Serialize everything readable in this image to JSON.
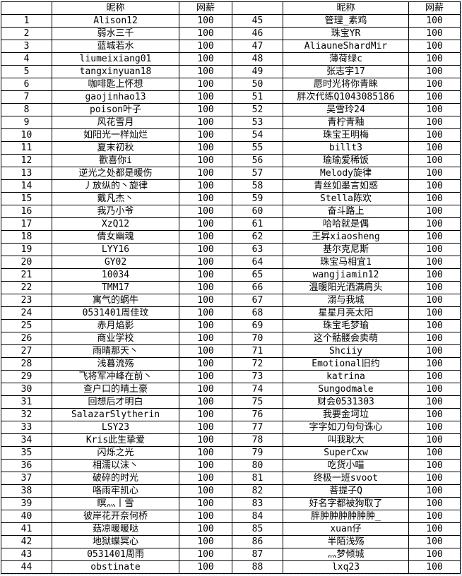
{
  "headers": {
    "index": "",
    "name": "昵称",
    "pay": "网薪"
  },
  "rows": [
    {
      "left": {
        "index": "1",
        "name": "Alison12",
        "pay": "100"
      },
      "right": {
        "index": "45",
        "name": "管理_素鸡",
        "pay": "100"
      }
    },
    {
      "left": {
        "index": "2",
        "name": "弱水三千",
        "pay": "100"
      },
      "right": {
        "index": "46",
        "name": "珠宝YR",
        "pay": "100"
      }
    },
    {
      "left": {
        "index": "3",
        "name": "蓝城若水",
        "pay": "100"
      },
      "right": {
        "index": "47",
        "name": "AliauneShardMir",
        "pay": "100"
      }
    },
    {
      "left": {
        "index": "4",
        "name": "liumeixiang01",
        "pay": "100"
      },
      "right": {
        "index": "48",
        "name": "薄荷绿c",
        "pay": "100"
      }
    },
    {
      "left": {
        "index": "5",
        "name": "tangxinyuan18",
        "pay": "100"
      },
      "right": {
        "index": "49",
        "name": "张志宇17",
        "pay": "100"
      }
    },
    {
      "left": {
        "index": "6",
        "name": "咖啡匙上怀想",
        "pay": "100"
      },
      "right": {
        "index": "50",
        "name": "愿时光将你青睐",
        "pay": "100"
      }
    },
    {
      "left": {
        "index": "7",
        "name": "gaojinhao13",
        "pay": "100"
      },
      "right": {
        "index": "51",
        "name": "胖次代练Q1043085186",
        "pay": "100"
      }
    },
    {
      "left": {
        "index": "8",
        "name": "poison叶子",
        "pay": "100"
      },
      "right": {
        "index": "52",
        "name": "吴雪玲24",
        "pay": "100"
      }
    },
    {
      "left": {
        "index": "9",
        "name": "风花雪月",
        "pay": "100"
      },
      "right": {
        "index": "53",
        "name": "青柠青釉",
        "pay": "100"
      }
    },
    {
      "left": {
        "index": "10",
        "name": "如阳光一样灿烂",
        "pay": "100"
      },
      "right": {
        "index": "54",
        "name": "珠宝王明梅",
        "pay": "100"
      }
    },
    {
      "left": {
        "index": "11",
        "name": "夏末初秋",
        "pay": "100"
      },
      "right": {
        "index": "55",
        "name": "billt3",
        "pay": "100"
      }
    },
    {
      "left": {
        "index": "12",
        "name": "歡喜你i",
        "pay": "100"
      },
      "right": {
        "index": "56",
        "name": "瑜瑜爱稀饭",
        "pay": "100"
      }
    },
    {
      "left": {
        "index": "13",
        "name": "逆光之处都是暖伤",
        "pay": "100"
      },
      "right": {
        "index": "57",
        "name": "Melody旋律",
        "pay": "100"
      }
    },
    {
      "left": {
        "index": "14",
        "name": "丿放纵的丶旋律",
        "pay": "100"
      },
      "right": {
        "index": "58",
        "name": "青丝如墨言如惑",
        "pay": "100"
      }
    },
    {
      "left": {
        "index": "15",
        "name": "戴凡杰丶",
        "pay": "100"
      },
      "right": {
        "index": "59",
        "name": "Stella陈欢",
        "pay": "100"
      }
    },
    {
      "left": {
        "index": "16",
        "name": "我乃小爷",
        "pay": "100"
      },
      "right": {
        "index": "60",
        "name": "奋斗路上",
        "pay": "100"
      }
    },
    {
      "left": {
        "index": "17",
        "name": "XzQ12",
        "pay": "100"
      },
      "right": {
        "index": "61",
        "name": "哈哈就是偶",
        "pay": "100"
      }
    },
    {
      "left": {
        "index": "18",
        "name": "倩女幽魂",
        "pay": "100"
      },
      "right": {
        "index": "62",
        "name": "王昇xiaosheng",
        "pay": "100"
      }
    },
    {
      "left": {
        "index": "19",
        "name": "LYY16",
        "pay": "100"
      },
      "right": {
        "index": "63",
        "name": "基尔克尼斯",
        "pay": "100"
      }
    },
    {
      "left": {
        "index": "20",
        "name": "GY02",
        "pay": "100"
      },
      "right": {
        "index": "64",
        "name": "珠宝马相宜1",
        "pay": "100"
      }
    },
    {
      "left": {
        "index": "21",
        "name": "10034",
        "pay": "100"
      },
      "right": {
        "index": "65",
        "name": "wangjiamin12",
        "pay": "100"
      }
    },
    {
      "left": {
        "index": "22",
        "name": "TMM17",
        "pay": "100"
      },
      "right": {
        "index": "66",
        "name": "温暖阳光洒满肩头",
        "pay": "100"
      }
    },
    {
      "left": {
        "index": "23",
        "name": "寓气的蜗牛",
        "pay": "100"
      },
      "right": {
        "index": "67",
        "name": "溺与我城",
        "pay": "100"
      }
    },
    {
      "left": {
        "index": "24",
        "name": "0531401周佳玟",
        "pay": "100"
      },
      "right": {
        "index": "68",
        "name": "星星月亮太阳",
        "pay": "100"
      }
    },
    {
      "left": {
        "index": "25",
        "name": "赤月焰影",
        "pay": "100"
      },
      "right": {
        "index": "69",
        "name": "珠宝毛梦瑜",
        "pay": "100"
      }
    },
    {
      "left": {
        "index": "26",
        "name": "商业学校",
        "pay": "100"
      },
      "right": {
        "index": "70",
        "name": "这个骷髅会卖萌",
        "pay": "100"
      }
    },
    {
      "left": {
        "index": "27",
        "name": "雨晴那天丶",
        "pay": "100"
      },
      "right": {
        "index": "71",
        "name": "Shciiy",
        "pay": "100"
      }
    },
    {
      "left": {
        "index": "28",
        "name": "浅暮流殇",
        "pay": "100"
      },
      "right": {
        "index": "72",
        "name": "Emotional旧约",
        "pay": "100"
      }
    },
    {
      "left": {
        "index": "29",
        "name": "飞将军冲峰在前丶",
        "pay": "100"
      },
      "right": {
        "index": "73",
        "name": "katrina",
        "pay": "100"
      }
    },
    {
      "left": {
        "index": "30",
        "name": "查户口的晴土豪",
        "pay": "100"
      },
      "right": {
        "index": "74",
        "name": "Sungodmale",
        "pay": "100"
      }
    },
    {
      "left": {
        "index": "31",
        "name": "回想后才明白",
        "pay": "100"
      },
      "right": {
        "index": "75",
        "name": "财会0531303",
        "pay": "100"
      }
    },
    {
      "left": {
        "index": "32",
        "name": "SalazarSlytherin",
        "pay": "100"
      },
      "right": {
        "index": "76",
        "name": "我要金坷垃",
        "pay": "100"
      }
    },
    {
      "left": {
        "index": "33",
        "name": "LSY23",
        "pay": "100"
      },
      "right": {
        "index": "77",
        "name": "字字如刀句句诛心",
        "pay": "100"
      }
    },
    {
      "left": {
        "index": "34",
        "name": "Kris此生挚爱",
        "pay": "100"
      },
      "right": {
        "index": "78",
        "name": "叫我耿大",
        "pay": "100"
      }
    },
    {
      "left": {
        "index": "35",
        "name": "闪烁之光",
        "pay": "100"
      },
      "right": {
        "index": "79",
        "name": "SuperCxw",
        "pay": "100"
      }
    },
    {
      "left": {
        "index": "36",
        "name": "相濡以沫丶",
        "pay": "100"
      },
      "right": {
        "index": "80",
        "name": "吃货小喵",
        "pay": "100"
      }
    },
    {
      "left": {
        "index": "37",
        "name": "破碎的时光",
        "pay": "100"
      },
      "right": {
        "index": "81",
        "name": "终极一班svoot",
        "pay": "100"
      }
    },
    {
      "left": {
        "index": "38",
        "name": "咯雨牢凯心",
        "pay": "100"
      },
      "right": {
        "index": "82",
        "name": "菩提子Q",
        "pay": "100"
      }
    },
    {
      "left": {
        "index": "39",
        "name": "瞑灬丨雪",
        "pay": "100"
      },
      "right": {
        "index": "83",
        "name": "好名字都被狗取了",
        "pay": "100"
      }
    },
    {
      "left": {
        "index": "40",
        "name": "彼岸花开奈何桥",
        "pay": "100"
      },
      "right": {
        "index": "84",
        "name": "胖肿肿肿肿肿肿_",
        "pay": "100"
      }
    },
    {
      "left": {
        "index": "41",
        "name": "菇凉暖暖哒",
        "pay": "100"
      },
      "right": {
        "index": "85",
        "name": "xuan仔",
        "pay": "100"
      }
    },
    {
      "left": {
        "index": "42",
        "name": "地狱蝶冥心",
        "pay": "100"
      },
      "right": {
        "index": "86",
        "name": "半陌浅殇",
        "pay": "100"
      }
    },
    {
      "left": {
        "index": "43",
        "name": "0531401周雨",
        "pay": "100"
      },
      "right": {
        "index": "87",
        "name": "灬梦倾城",
        "pay": "100"
      }
    },
    {
      "left": {
        "index": "44",
        "name": "obstinate",
        "pay": "100"
      },
      "right": {
        "index": "88",
        "name": "lxq23",
        "pay": "100"
      }
    }
  ]
}
